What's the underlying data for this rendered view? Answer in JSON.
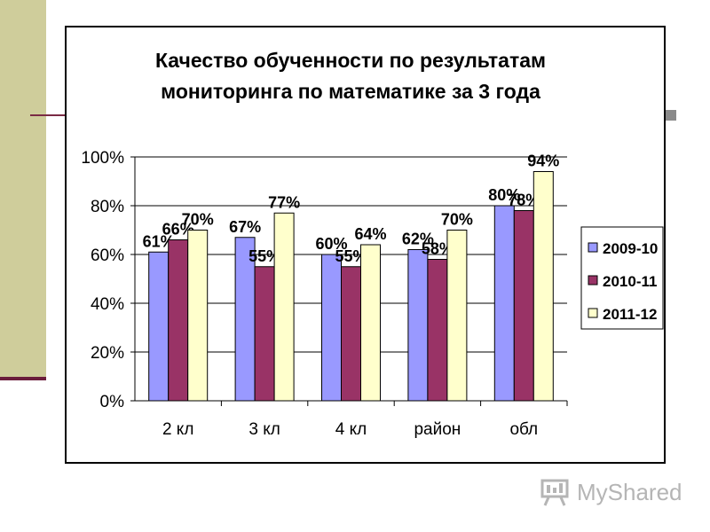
{
  "chart_data": {
    "type": "bar",
    "title_lines": [
      "Качество обученности по результатам",
      "мониторинга по математике за 3 года"
    ],
    "categories": [
      "2 кл",
      "3 кл",
      "4 кл",
      "район",
      "обл"
    ],
    "series": [
      {
        "name": "2009-10",
        "values": [
          61,
          67,
          60,
          62,
          80
        ],
        "color": "#9999ff"
      },
      {
        "name": "2010-11",
        "values": [
          66,
          55,
          55,
          58,
          78
        ],
        "color": "#993366"
      },
      {
        "name": "2011-12",
        "values": [
          70,
          77,
          64,
          70,
          94
        ],
        "color": "#ffffcc"
      }
    ],
    "ylim": [
      0,
      100
    ],
    "yticks": [
      "0%",
      "20%",
      "40%",
      "60%",
      "80%",
      "100%"
    ],
    "value_suffix": "%",
    "grid": true,
    "legend_position": "right"
  },
  "watermark": {
    "text": "MyShared",
    "icon": "presentation-board-icon"
  }
}
